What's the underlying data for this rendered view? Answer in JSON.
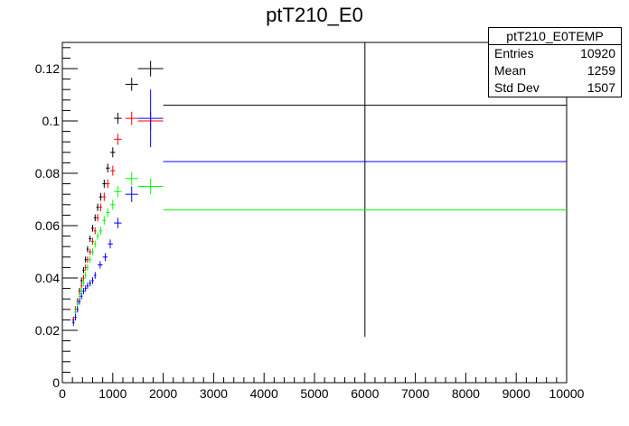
{
  "chart_data": {
    "type": "scatter",
    "title": "ptT210_E0",
    "xlabel": "",
    "ylabel": "",
    "xlim": [
      0,
      10000
    ],
    "ylim": [
      0,
      0.13
    ],
    "x_ticks": [
      "0",
      "1000",
      "2000",
      "3000",
      "4000",
      "5000",
      "6000",
      "7000",
      "8000",
      "9000",
      "10000"
    ],
    "y_ticks": [
      "0",
      "0.02",
      "0.04",
      "0.06",
      "0.08",
      "0.1",
      "0.12"
    ],
    "stats_box": {
      "name": "ptT210_E0TEMP",
      "rows": [
        {
          "label": "Entries",
          "value": "10920"
        },
        {
          "label": "Mean",
          "value": "1259"
        },
        {
          "label": "Std Dev",
          "value": "1507"
        }
      ]
    },
    "series": [
      {
        "color": "#000000",
        "points": [
          {
            "x": 220,
            "y": 0.024,
            "xe": 20,
            "ye": 0.0012
          },
          {
            "x": 260,
            "y": 0.027,
            "xe": 20,
            "ye": 0.0012
          },
          {
            "x": 300,
            "y": 0.031,
            "xe": 20,
            "ye": 0.0012
          },
          {
            "x": 340,
            "y": 0.035,
            "xe": 20,
            "ye": 0.0012
          },
          {
            "x": 380,
            "y": 0.039,
            "xe": 20,
            "ye": 0.0012
          },
          {
            "x": 420,
            "y": 0.043,
            "xe": 20,
            "ye": 0.0012
          },
          {
            "x": 460,
            "y": 0.047,
            "xe": 20,
            "ye": 0.0012
          },
          {
            "x": 500,
            "y": 0.051,
            "xe": 20,
            "ye": 0.0012
          },
          {
            "x": 550,
            "y": 0.055,
            "xe": 25,
            "ye": 0.0012
          },
          {
            "x": 600,
            "y": 0.059,
            "xe": 25,
            "ye": 0.0013
          },
          {
            "x": 650,
            "y": 0.063,
            "xe": 25,
            "ye": 0.0013
          },
          {
            "x": 700,
            "y": 0.067,
            "xe": 25,
            "ye": 0.0014
          },
          {
            "x": 760,
            "y": 0.071,
            "xe": 30,
            "ye": 0.0015
          },
          {
            "x": 830,
            "y": 0.076,
            "xe": 35,
            "ye": 0.0016
          },
          {
            "x": 900,
            "y": 0.082,
            "xe": 40,
            "ye": 0.0017
          },
          {
            "x": 1000,
            "y": 0.088,
            "xe": 50,
            "ye": 0.0019
          },
          {
            "x": 1100,
            "y": 0.101,
            "xe": 75,
            "ye": 0.0021
          },
          {
            "x": 1375,
            "y": 0.114,
            "xe": 125,
            "ye": 0.0025
          },
          {
            "x": 1750,
            "y": 0.12,
            "xe": 250,
            "ye": 0.003
          },
          {
            "x": 6000,
            "y": 0.106,
            "xe": 4000,
            "ye": 0.0885
          }
        ]
      },
      {
        "color": "#ff0000",
        "points": [
          {
            "x": 220,
            "y": 0.024,
            "xe": 20,
            "ye": 0.0012
          },
          {
            "x": 260,
            "y": 0.028,
            "xe": 20,
            "ye": 0.0012
          },
          {
            "x": 300,
            "y": 0.031,
            "xe": 20,
            "ye": 0.0012
          },
          {
            "x": 340,
            "y": 0.034,
            "xe": 20,
            "ye": 0.0012
          },
          {
            "x": 380,
            "y": 0.037,
            "xe": 20,
            "ye": 0.0012
          },
          {
            "x": 420,
            "y": 0.04,
            "xe": 20,
            "ye": 0.0012
          },
          {
            "x": 460,
            "y": 0.044,
            "xe": 20,
            "ye": 0.0012
          },
          {
            "x": 500,
            "y": 0.047,
            "xe": 20,
            "ye": 0.0012
          },
          {
            "x": 550,
            "y": 0.05,
            "xe": 25,
            "ye": 0.0012
          },
          {
            "x": 600,
            "y": 0.054,
            "xe": 25,
            "ye": 0.0013
          },
          {
            "x": 650,
            "y": 0.058,
            "xe": 25,
            "ye": 0.0013
          },
          {
            "x": 700,
            "y": 0.063,
            "xe": 25,
            "ye": 0.0014
          },
          {
            "x": 760,
            "y": 0.067,
            "xe": 30,
            "ye": 0.0015
          },
          {
            "x": 830,
            "y": 0.071,
            "xe": 35,
            "ye": 0.0016
          },
          {
            "x": 900,
            "y": 0.076,
            "xe": 40,
            "ye": 0.0017
          },
          {
            "x": 1000,
            "y": 0.081,
            "xe": 50,
            "ye": 0.0019
          },
          {
            "x": 1100,
            "y": 0.093,
            "xe": 75,
            "ye": 0.0021
          },
          {
            "x": 1375,
            "y": 0.101,
            "xe": 125,
            "ye": 0.0025
          },
          {
            "x": 1750,
            "y": 0.1,
            "xe": 250,
            "ye": 0.0035
          }
        ]
      },
      {
        "color": "#00ff00",
        "points": [
          {
            "x": 220,
            "y": 0.023,
            "xe": 20,
            "ye": 0.0012
          },
          {
            "x": 260,
            "y": 0.027,
            "xe": 20,
            "ye": 0.0012
          },
          {
            "x": 300,
            "y": 0.03,
            "xe": 20,
            "ye": 0.0012
          },
          {
            "x": 340,
            "y": 0.033,
            "xe": 20,
            "ye": 0.0012
          },
          {
            "x": 380,
            "y": 0.035,
            "xe": 20,
            "ye": 0.0012
          },
          {
            "x": 420,
            "y": 0.038,
            "xe": 20,
            "ye": 0.0012
          },
          {
            "x": 460,
            "y": 0.041,
            "xe": 20,
            "ye": 0.0012
          },
          {
            "x": 500,
            "y": 0.044,
            "xe": 20,
            "ye": 0.0012
          },
          {
            "x": 550,
            "y": 0.047,
            "xe": 25,
            "ye": 0.0012
          },
          {
            "x": 600,
            "y": 0.05,
            "xe": 25,
            "ye": 0.0013
          },
          {
            "x": 650,
            "y": 0.053,
            "xe": 25,
            "ye": 0.0013
          },
          {
            "x": 700,
            "y": 0.056,
            "xe": 25,
            "ye": 0.0014
          },
          {
            "x": 760,
            "y": 0.058,
            "xe": 30,
            "ye": 0.0015
          },
          {
            "x": 830,
            "y": 0.062,
            "xe": 35,
            "ye": 0.0016
          },
          {
            "x": 900,
            "y": 0.065,
            "xe": 40,
            "ye": 0.0017
          },
          {
            "x": 1000,
            "y": 0.068,
            "xe": 50,
            "ye": 0.0019
          },
          {
            "x": 1100,
            "y": 0.073,
            "xe": 75,
            "ye": 0.0021
          },
          {
            "x": 1375,
            "y": 0.078,
            "xe": 125,
            "ye": 0.0025
          },
          {
            "x": 1750,
            "y": 0.075,
            "xe": 250,
            "ye": 0.003
          },
          {
            "x": 6000,
            "y": 0.066,
            "xe": 4000,
            "ye": 0
          }
        ]
      },
      {
        "color": "#0000ff",
        "points": [
          {
            "x": 220,
            "y": 0.023,
            "xe": 20,
            "ye": 0.0012
          },
          {
            "x": 260,
            "y": 0.025,
            "xe": 20,
            "ye": 0.0012
          },
          {
            "x": 300,
            "y": 0.028,
            "xe": 20,
            "ye": 0.0012
          },
          {
            "x": 340,
            "y": 0.031,
            "xe": 20,
            "ye": 0.0012
          },
          {
            "x": 380,
            "y": 0.033,
            "xe": 20,
            "ye": 0.0012
          },
          {
            "x": 420,
            "y": 0.035,
            "xe": 20,
            "ye": 0.0012
          },
          {
            "x": 460,
            "y": 0.036,
            "xe": 20,
            "ye": 0.0012
          },
          {
            "x": 500,
            "y": 0.037,
            "xe": 20,
            "ye": 0.0012
          },
          {
            "x": 550,
            "y": 0.038,
            "xe": 25,
            "ye": 0.0012
          },
          {
            "x": 600,
            "y": 0.039,
            "xe": 25,
            "ye": 0.0013
          },
          {
            "x": 650,
            "y": 0.041,
            "xe": 25,
            "ye": 0.0013
          },
          {
            "x": 750,
            "y": 0.045,
            "xe": 50,
            "ye": 0.0014
          },
          {
            "x": 850,
            "y": 0.048,
            "xe": 50,
            "ye": 0.0015
          },
          {
            "x": 950,
            "y": 0.053,
            "xe": 50,
            "ye": 0.0017
          },
          {
            "x": 1100,
            "y": 0.061,
            "xe": 75,
            "ye": 0.002
          },
          {
            "x": 1375,
            "y": 0.072,
            "xe": 125,
            "ye": 0.003
          },
          {
            "x": 1750,
            "y": 0.101,
            "xe": 250,
            "ye": 0.011
          },
          {
            "x": 6000,
            "y": 0.0845,
            "xe": 4000,
            "ye": 0
          }
        ]
      }
    ]
  }
}
